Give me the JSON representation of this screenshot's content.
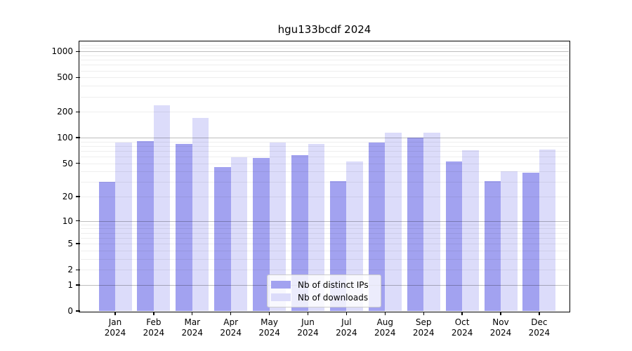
{
  "title": "hgu133bcdf 2024",
  "legend": {
    "items": [
      {
        "label": "Nb of distinct IPs",
        "color": "#a2a2f0"
      },
      {
        "label": "Nb of downloads",
        "color": "#dcdcfa"
      }
    ]
  },
  "chart_data": {
    "type": "bar",
    "title": "hgu133bcdf 2024",
    "categories": [
      "Jan",
      "Feb",
      "Mar",
      "Apr",
      "May",
      "Jun",
      "Jul",
      "Aug",
      "Sep",
      "Oct",
      "Nov",
      "Dec"
    ],
    "category_year_line": "2024",
    "series": [
      {
        "name": "Nb of distinct IPs",
        "color": "#a2a2f0",
        "values": [
          30,
          92,
          84,
          45,
          58,
          62,
          31,
          87,
          101,
          53,
          31,
          39
        ]
      },
      {
        "name": "Nb of downloads",
        "color": "#dcdcfa",
        "values": [
          87,
          240,
          170,
          59,
          88,
          85,
          53,
          114,
          115,
          71,
          40,
          72
        ]
      }
    ],
    "yscale": "log10(1+v)",
    "yticks": [
      0,
      1,
      2,
      5,
      10,
      20,
      50,
      100,
      200,
      500,
      1000
    ],
    "ylim": [
      0,
      1285
    ],
    "xlabel": "",
    "ylabel": "",
    "grid": "on",
    "legend_position": "lower center"
  }
}
